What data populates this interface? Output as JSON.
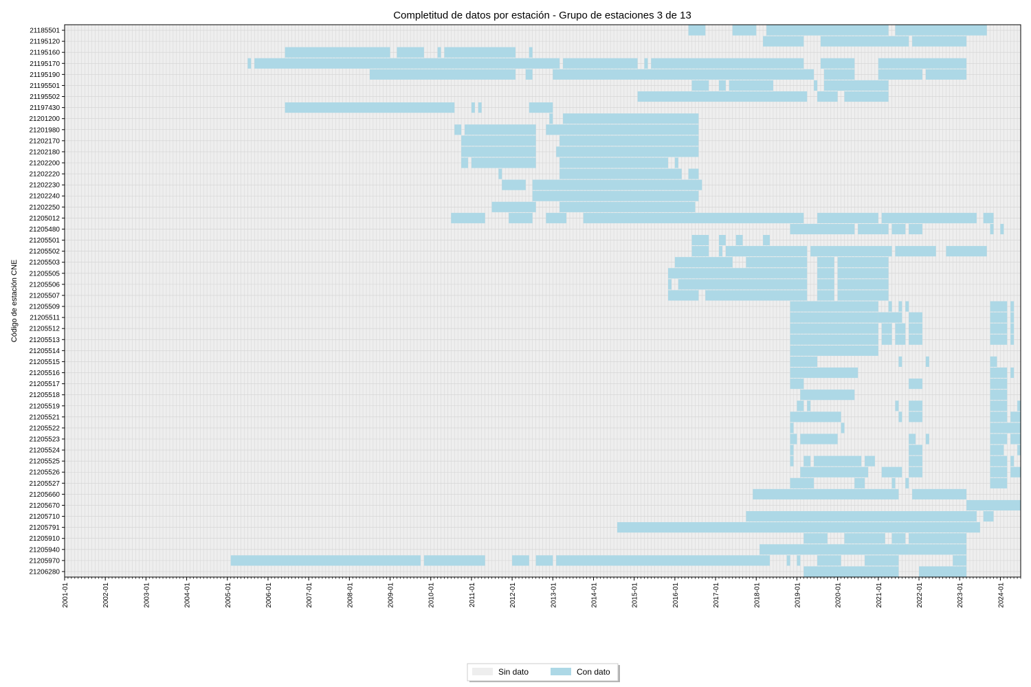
{
  "chart_data": {
    "type": "heatmap",
    "title": "Completitud de datos por estación - Grupo de estaciones 3 de 13",
    "ylabel": "Código de estación CNE",
    "xlabel": "",
    "x_range": [
      "2001-01",
      "2024-07"
    ],
    "x_ticks": [
      "2001-01",
      "2002-01",
      "2003-01",
      "2004-01",
      "2005-01",
      "2006-01",
      "2007-01",
      "2008-01",
      "2009-01",
      "2010-01",
      "2011-01",
      "2012-01",
      "2013-01",
      "2014-01",
      "2015-01",
      "2016-01",
      "2017-01",
      "2018-01",
      "2019-01",
      "2020-01",
      "2021-01",
      "2022-01",
      "2023-01",
      "2024-01"
    ],
    "grid": true,
    "legend": {
      "placement": "bottom-center",
      "items": [
        {
          "label": "Sin dato",
          "color": "#eeeeee"
        },
        {
          "label": "Con dato",
          "color": "#add8e6"
        }
      ]
    },
    "stations": [
      {
        "code": "21206280",
        "segments": [
          [
            "2019-03",
            "2021-07"
          ],
          [
            "2022-01",
            "2023-03"
          ]
        ]
      },
      {
        "code": "21205970",
        "segments": [
          [
            "2005-02",
            "2009-10"
          ],
          [
            "2009-11",
            "2011-05"
          ],
          [
            "2012-01",
            "2012-06"
          ],
          [
            "2012-08",
            "2013-01"
          ],
          [
            "2013-02",
            "2018-05"
          ],
          [
            "2018-10",
            "2018-11"
          ],
          [
            "2019-01",
            "2019-02"
          ],
          [
            "2019-07",
            "2020-02"
          ],
          [
            "2020-09",
            "2021-07"
          ],
          [
            "2022-11",
            "2023-03"
          ]
        ]
      },
      {
        "code": "21205940",
        "segments": [
          [
            "2018-02",
            "2021-10"
          ],
          [
            "2021-10",
            "2023-03"
          ]
        ]
      },
      {
        "code": "21205910",
        "segments": [
          [
            "2019-03",
            "2019-10"
          ],
          [
            "2020-03",
            "2021-03"
          ],
          [
            "2021-05",
            "2021-09"
          ],
          [
            "2021-10",
            "2023-03"
          ]
        ]
      },
      {
        "code": "21205791",
        "segments": [
          [
            "2014-08",
            "2023-07"
          ]
        ]
      },
      {
        "code": "21205710",
        "segments": [
          [
            "2017-10",
            "2023-06"
          ],
          [
            "2023-08",
            "2023-11"
          ]
        ]
      },
      {
        "code": "21205670",
        "segments": [
          [
            "2023-03",
            "2024-07"
          ]
        ]
      },
      {
        "code": "21205660",
        "segments": [
          [
            "2017-12",
            "2021-07"
          ],
          [
            "2021-11",
            "2023-03"
          ]
        ]
      },
      {
        "code": "21205527",
        "segments": [
          [
            "2018-11",
            "2019-06"
          ],
          [
            "2020-06",
            "2020-09"
          ],
          [
            "2021-05",
            "2021-06"
          ],
          [
            "2021-09",
            "2021-10"
          ],
          [
            "2023-10",
            "2024-03"
          ]
        ]
      },
      {
        "code": "21205526",
        "segments": [
          [
            "2019-02",
            "2020-10"
          ],
          [
            "2021-02",
            "2021-08"
          ],
          [
            "2021-10",
            "2022-02"
          ],
          [
            "2023-10",
            "2024-03"
          ],
          [
            "2024-04",
            "2024-07"
          ]
        ]
      },
      {
        "code": "21205525",
        "segments": [
          [
            "2018-11",
            "2018-12"
          ],
          [
            "2019-03",
            "2019-05"
          ],
          [
            "2019-06",
            "2020-08"
          ],
          [
            "2020-09",
            "2020-12"
          ],
          [
            "2021-10",
            "2022-02"
          ],
          [
            "2023-10",
            "2024-03"
          ],
          [
            "2024-04",
            "2024-05"
          ]
        ]
      },
      {
        "code": "21205524",
        "segments": [
          [
            "2018-11",
            "2018-12"
          ],
          [
            "2021-10",
            "2022-02"
          ],
          [
            "2023-10",
            "2024-02"
          ],
          [
            "2024-06",
            "2024-07"
          ]
        ]
      },
      {
        "code": "21205523",
        "segments": [
          [
            "2018-11",
            "2019-01"
          ],
          [
            "2019-02",
            "2020-01"
          ],
          [
            "2021-10",
            "2021-12"
          ],
          [
            "2022-03",
            "2022-04"
          ],
          [
            "2023-10",
            "2024-03"
          ],
          [
            "2024-04",
            "2024-07"
          ]
        ]
      },
      {
        "code": "21205522",
        "segments": [
          [
            "2018-11",
            "2018-12"
          ],
          [
            "2020-02",
            "2020-03"
          ],
          [
            "2023-10",
            "2024-07"
          ]
        ]
      },
      {
        "code": "21205521",
        "segments": [
          [
            "2018-11",
            "2020-02"
          ],
          [
            "2021-07",
            "2021-08"
          ],
          [
            "2021-10",
            "2022-02"
          ],
          [
            "2023-10",
            "2024-03"
          ],
          [
            "2024-04",
            "2024-07"
          ]
        ]
      },
      {
        "code": "21205519",
        "segments": [
          [
            "2019-01",
            "2019-03"
          ],
          [
            "2019-04",
            "2019-05"
          ],
          [
            "2021-06",
            "2021-07"
          ],
          [
            "2021-10",
            "2022-02"
          ],
          [
            "2023-10",
            "2024-03"
          ],
          [
            "2024-06",
            "2024-07"
          ]
        ]
      },
      {
        "code": "21205518",
        "segments": [
          [
            "2019-02",
            "2020-03"
          ],
          [
            "2020-03",
            "2020-06"
          ],
          [
            "2023-10",
            "2024-03"
          ]
        ]
      },
      {
        "code": "21205517",
        "segments": [
          [
            "2018-11",
            "2019-03"
          ],
          [
            "2021-10",
            "2022-02"
          ],
          [
            "2023-10",
            "2024-03"
          ]
        ]
      },
      {
        "code": "21205516",
        "segments": [
          [
            "2018-11",
            "2020-07"
          ],
          [
            "2023-10",
            "2024-03"
          ],
          [
            "2024-04",
            "2024-05"
          ]
        ]
      },
      {
        "code": "21205515",
        "segments": [
          [
            "2018-11",
            "2019-07"
          ],
          [
            "2021-07",
            "2021-08"
          ],
          [
            "2022-03",
            "2022-04"
          ],
          [
            "2023-10",
            "2023-12"
          ]
        ]
      },
      {
        "code": "21205514",
        "segments": [
          [
            "2018-11",
            "2021-01"
          ]
        ]
      },
      {
        "code": "21205513",
        "segments": [
          [
            "2018-11",
            "2021-01"
          ],
          [
            "2021-02",
            "2021-05"
          ],
          [
            "2021-06",
            "2021-09"
          ],
          [
            "2021-10",
            "2022-02"
          ],
          [
            "2023-10",
            "2024-03"
          ],
          [
            "2024-04",
            "2024-05"
          ]
        ]
      },
      {
        "code": "21205512",
        "segments": [
          [
            "2018-11",
            "2021-01"
          ],
          [
            "2021-02",
            "2021-05"
          ],
          [
            "2021-06",
            "2021-09"
          ],
          [
            "2021-10",
            "2022-02"
          ],
          [
            "2023-10",
            "2024-03"
          ],
          [
            "2024-04",
            "2024-05"
          ]
        ]
      },
      {
        "code": "21205511",
        "segments": [
          [
            "2018-11",
            "2021-01"
          ],
          [
            "2021-01",
            "2021-08"
          ],
          [
            "2021-10",
            "2022-02"
          ],
          [
            "2023-10",
            "2024-03"
          ],
          [
            "2024-04",
            "2024-05"
          ]
        ]
      },
      {
        "code": "21205509",
        "segments": [
          [
            "2018-11",
            "2021-01"
          ],
          [
            "2021-04",
            "2021-05"
          ],
          [
            "2021-07",
            "2021-08"
          ],
          [
            "2021-09",
            "2021-10"
          ],
          [
            "2023-10",
            "2024-03"
          ],
          [
            "2024-04",
            "2024-05"
          ]
        ]
      },
      {
        "code": "21205507",
        "segments": [
          [
            "2015-11",
            "2016-08"
          ],
          [
            "2016-10",
            "2019-04"
          ],
          [
            "2019-07",
            "2019-12"
          ],
          [
            "2020-01",
            "2021-04"
          ]
        ]
      },
      {
        "code": "21205506",
        "segments": [
          [
            "2015-11",
            "2015-12"
          ],
          [
            "2016-02",
            "2019-04"
          ],
          [
            "2019-07",
            "2019-12"
          ],
          [
            "2020-01",
            "2021-04"
          ]
        ]
      },
      {
        "code": "21205505",
        "segments": [
          [
            "2015-11",
            "2019-04"
          ],
          [
            "2019-07",
            "2019-12"
          ],
          [
            "2020-01",
            "2021-04"
          ]
        ]
      },
      {
        "code": "21205503",
        "segments": [
          [
            "2016-01",
            "2017-06"
          ],
          [
            "2017-10",
            "2019-04"
          ],
          [
            "2019-07",
            "2019-12"
          ],
          [
            "2020-01",
            "2021-04"
          ]
        ]
      },
      {
        "code": "21205502",
        "segments": [
          [
            "2016-06",
            "2016-11"
          ],
          [
            "2017-02",
            "2017-03"
          ],
          [
            "2017-04",
            "2019-04"
          ],
          [
            "2019-05",
            "2021-05"
          ],
          [
            "2021-06",
            "2022-06"
          ],
          [
            "2022-09",
            "2023-09"
          ]
        ]
      },
      {
        "code": "21205501",
        "segments": [
          [
            "2016-06",
            "2016-11"
          ],
          [
            "2017-02",
            "2017-04"
          ],
          [
            "2017-07",
            "2017-09"
          ],
          [
            "2018-03",
            "2018-05"
          ]
        ]
      },
      {
        "code": "21205480",
        "segments": [
          [
            "2018-11",
            "2020-06"
          ],
          [
            "2020-07",
            "2021-02"
          ],
          [
            "2021-02",
            "2021-04"
          ],
          [
            "2021-05",
            "2021-09"
          ],
          [
            "2021-10",
            "2022-02"
          ],
          [
            "2023-10",
            "2023-11"
          ],
          [
            "2024-01",
            "2024-02"
          ]
        ]
      },
      {
        "code": "21205012",
        "segments": [
          [
            "2010-07",
            "2011-05"
          ],
          [
            "2011-12",
            "2012-07"
          ],
          [
            "2012-11",
            "2013-05"
          ],
          [
            "2013-10",
            "2019-03"
          ],
          [
            "2019-07",
            "2021-01"
          ],
          [
            "2021-02",
            "2023-06"
          ],
          [
            "2023-08",
            "2023-11"
          ]
        ]
      },
      {
        "code": "21202250",
        "segments": [
          [
            "2011-07",
            "2012-08"
          ],
          [
            "2013-03",
            "2016-07"
          ]
        ]
      },
      {
        "code": "21202240",
        "segments": [
          [
            "2012-07",
            "2016-08"
          ]
        ]
      },
      {
        "code": "21202230",
        "segments": [
          [
            "2011-10",
            "2012-05"
          ],
          [
            "2012-07",
            "2016-09"
          ]
        ]
      },
      {
        "code": "21202220",
        "segments": [
          [
            "2011-09",
            "2011-10"
          ],
          [
            "2013-03",
            "2016-03"
          ],
          [
            "2016-05",
            "2016-08"
          ]
        ]
      },
      {
        "code": "21202200",
        "segments": [
          [
            "2010-10",
            "2010-12"
          ],
          [
            "2011-01",
            "2012-08"
          ],
          [
            "2013-03",
            "2015-11"
          ],
          [
            "2016-01",
            "2016-02"
          ]
        ]
      },
      {
        "code": "21202180",
        "segments": [
          [
            "2010-10",
            "2012-08"
          ],
          [
            "2013-02",
            "2016-08"
          ]
        ]
      },
      {
        "code": "21202170",
        "segments": [
          [
            "2010-10",
            "2012-08"
          ],
          [
            "2013-03",
            "2016-08"
          ]
        ]
      },
      {
        "code": "21201980",
        "segments": [
          [
            "2010-08",
            "2010-10"
          ],
          [
            "2010-11",
            "2012-08"
          ],
          [
            "2012-11",
            "2016-08"
          ]
        ]
      },
      {
        "code": "21201200",
        "segments": [
          [
            "2012-12",
            "2013-01"
          ],
          [
            "2013-04",
            "2016-08"
          ]
        ]
      },
      {
        "code": "21197430",
        "segments": [
          [
            "2006-06",
            "2010-08"
          ],
          [
            "2011-01",
            "2011-02"
          ],
          [
            "2011-03",
            "2011-04"
          ],
          [
            "2012-06",
            "2013-01"
          ]
        ]
      },
      {
        "code": "21195502",
        "segments": [
          [
            "2015-02",
            "2019-04"
          ],
          [
            "2019-07",
            "2020-01"
          ],
          [
            "2020-03",
            "2021-04"
          ]
        ]
      },
      {
        "code": "21195501",
        "segments": [
          [
            "2016-06",
            "2016-11"
          ],
          [
            "2017-02",
            "2017-04"
          ],
          [
            "2017-05",
            "2018-06"
          ],
          [
            "2019-06",
            "2019-07"
          ],
          [
            "2019-09",
            "2021-04"
          ]
        ]
      },
      {
        "code": "21195190",
        "segments": [
          [
            "2008-07",
            "2012-02"
          ],
          [
            "2012-05",
            "2012-07"
          ],
          [
            "2013-01",
            "2019-06"
          ],
          [
            "2019-09",
            "2020-06"
          ],
          [
            "2021-01",
            "2022-02"
          ],
          [
            "2022-03",
            "2023-03"
          ]
        ]
      },
      {
        "code": "21195170",
        "segments": [
          [
            "2005-07",
            "2005-08"
          ],
          [
            "2005-09",
            "2013-03"
          ],
          [
            "2013-04",
            "2015-02"
          ],
          [
            "2015-04",
            "2015-05"
          ],
          [
            "2015-06",
            "2019-03"
          ],
          [
            "2019-08",
            "2020-06"
          ],
          [
            "2021-01",
            "2023-03"
          ]
        ]
      },
      {
        "code": "21195160",
        "segments": [
          [
            "2006-06",
            "2009-01"
          ],
          [
            "2009-03",
            "2009-11"
          ],
          [
            "2010-03",
            "2010-04"
          ],
          [
            "2010-05",
            "2012-02"
          ],
          [
            "2012-06",
            "2012-07"
          ]
        ]
      },
      {
        "code": "21195120",
        "segments": [
          [
            "2018-03",
            "2019-03"
          ],
          [
            "2019-08",
            "2021-10"
          ],
          [
            "2021-11",
            "2023-03"
          ]
        ]
      },
      {
        "code": "21185501",
        "segments": [
          [
            "2016-05",
            "2016-10"
          ],
          [
            "2017-06",
            "2018-01"
          ],
          [
            "2018-04",
            "2021-04"
          ],
          [
            "2021-06",
            "2023-09"
          ]
        ]
      }
    ]
  }
}
